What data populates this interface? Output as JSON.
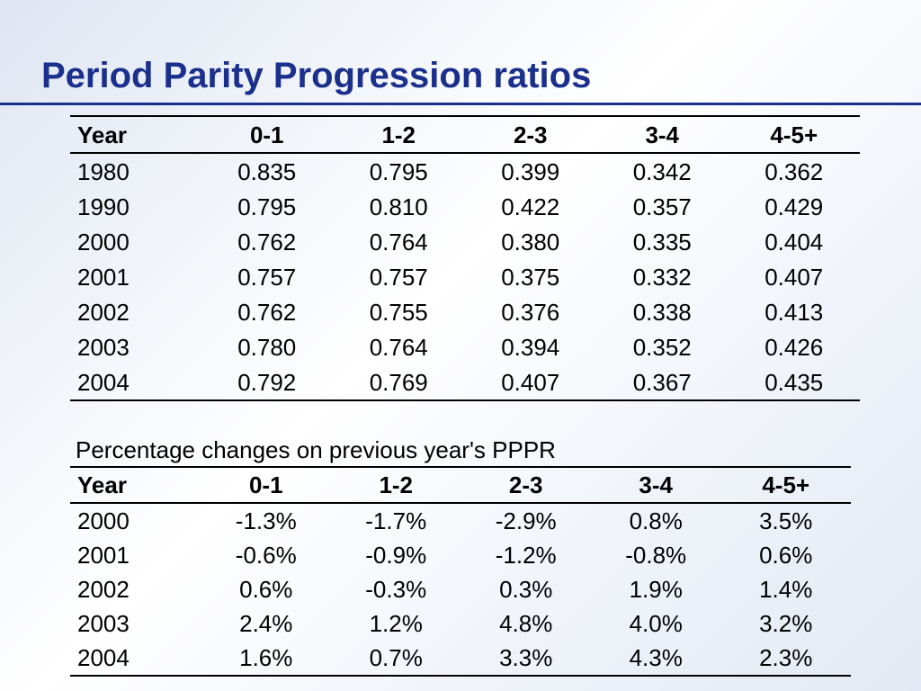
{
  "slide": {
    "title": "Period Parity Progression ratios"
  },
  "table1": {
    "headers": [
      "Year",
      "0-1",
      "1-2",
      "2-3",
      "3-4",
      "4-5+"
    ],
    "rows": [
      [
        "1980",
        "0.835",
        "0.795",
        "0.399",
        "0.342",
        "0.362"
      ],
      [
        "1990",
        "0.795",
        "0.810",
        "0.422",
        "0.357",
        "0.429"
      ],
      [
        "2000",
        "0.762",
        "0.764",
        "0.380",
        "0.335",
        "0.404"
      ],
      [
        "2001",
        "0.757",
        "0.757",
        "0.375",
        "0.332",
        "0.407"
      ],
      [
        "2002",
        "0.762",
        "0.755",
        "0.376",
        "0.338",
        "0.413"
      ],
      [
        "2003",
        "0.780",
        "0.764",
        "0.394",
        "0.352",
        "0.426"
      ],
      [
        "2004",
        "0.792",
        "0.769",
        "0.407",
        "0.367",
        "0.435"
      ]
    ]
  },
  "table2": {
    "caption": "Percentage changes on previous year's PPPR",
    "headers": [
      "Year",
      "0-1",
      "1-2",
      "2-3",
      "3-4",
      "4-5+"
    ],
    "rows": [
      [
        "2000",
        "-1.3%",
        "-1.7%",
        "-2.9%",
        "0.8%",
        "3.5%"
      ],
      [
        "2001",
        "-0.6%",
        "-0.9%",
        "-1.2%",
        "-0.8%",
        "0.6%"
      ],
      [
        "2002",
        "0.6%",
        "-0.3%",
        "0.3%",
        "1.9%",
        "1.4%"
      ],
      [
        "2003",
        "2.4%",
        "1.2%",
        "4.8%",
        "4.0%",
        "3.2%"
      ],
      [
        "2004",
        "1.6%",
        "0.7%",
        "3.3%",
        "4.3%",
        "2.3%"
      ]
    ]
  },
  "colors": {
    "title": "#1b2f8c",
    "rule": "#1b2f8c"
  }
}
